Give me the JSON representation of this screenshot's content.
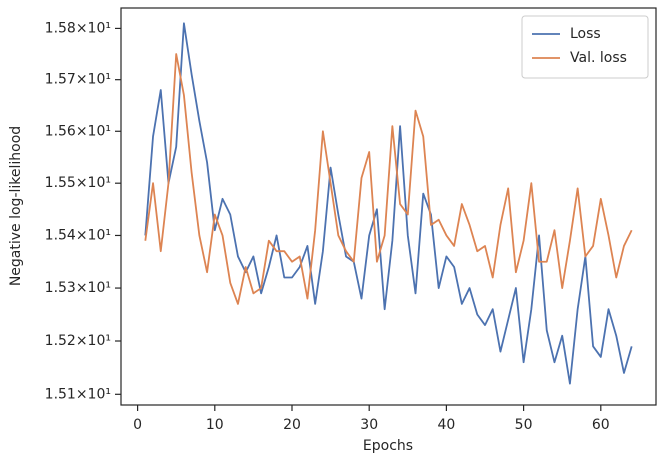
{
  "chart_data": {
    "type": "line",
    "xlabel": "Epochs",
    "ylabel": "Negative log-likelihood",
    "x": [
      1,
      2,
      3,
      4,
      5,
      6,
      7,
      8,
      9,
      10,
      11,
      12,
      13,
      14,
      15,
      16,
      17,
      18,
      19,
      20,
      21,
      22,
      23,
      24,
      25,
      26,
      27,
      28,
      29,
      30,
      31,
      32,
      33,
      34,
      35,
      36,
      37,
      38,
      39,
      40,
      41,
      42,
      43,
      44,
      45,
      46,
      47,
      48,
      49,
      50,
      51,
      52,
      53,
      54,
      55,
      56,
      57,
      58,
      59,
      60,
      61,
      62,
      63,
      64
    ],
    "series": [
      {
        "name": "Loss",
        "color": "#4c72b0",
        "values": [
          15.4,
          15.59,
          15.68,
          15.5,
          15.57,
          15.81,
          15.71,
          15.62,
          15.54,
          15.41,
          15.47,
          15.44,
          15.36,
          15.33,
          15.36,
          15.29,
          15.34,
          15.4,
          15.32,
          15.32,
          15.34,
          15.38,
          15.27,
          15.37,
          15.53,
          15.44,
          15.36,
          15.35,
          15.28,
          15.4,
          15.45,
          15.26,
          15.39,
          15.61,
          15.4,
          15.29,
          15.48,
          15.44,
          15.3,
          15.36,
          15.34,
          15.27,
          15.3,
          15.25,
          15.23,
          15.26,
          15.18,
          15.24,
          15.3,
          15.16,
          15.26,
          15.4,
          15.22,
          15.16,
          15.21,
          15.12,
          15.26,
          15.36,
          15.19,
          15.17,
          15.26,
          15.21,
          15.14,
          15.19
        ]
      },
      {
        "name": "Val. loss",
        "color": "#dd8452",
        "values": [
          15.39,
          15.5,
          15.37,
          15.5,
          15.75,
          15.67,
          15.52,
          15.4,
          15.33,
          15.44,
          15.4,
          15.31,
          15.27,
          15.34,
          15.29,
          15.3,
          15.39,
          15.37,
          15.37,
          15.35,
          15.36,
          15.28,
          15.41,
          15.6,
          15.5,
          15.4,
          15.37,
          15.35,
          15.51,
          15.56,
          15.35,
          15.4,
          15.61,
          15.46,
          15.44,
          15.64,
          15.59,
          15.42,
          15.43,
          15.4,
          15.38,
          15.46,
          15.42,
          15.37,
          15.38,
          15.32,
          15.42,
          15.49,
          15.33,
          15.39,
          15.5,
          15.35,
          15.35,
          15.41,
          15.3,
          15.39,
          15.49,
          15.36,
          15.38,
          15.47,
          15.4,
          15.32,
          15.38,
          15.41
        ]
      }
    ],
    "xlim": [
      -2.15,
      67.15
    ],
    "xticks": [
      0,
      10,
      20,
      30,
      40,
      50,
      60
    ],
    "ylim": [
      15.08,
      15.84
    ],
    "ylog": true,
    "yticks": [
      {
        "value": 15.1,
        "label": "1.51×10¹"
      },
      {
        "value": 15.2,
        "label": "1.52×10¹"
      },
      {
        "value": 15.3,
        "label": "1.53×10¹"
      },
      {
        "value": 15.4,
        "label": "1.54×10¹"
      },
      {
        "value": 15.5,
        "label": "1.55×10¹"
      },
      {
        "value": 15.6,
        "label": "1.56×10¹"
      },
      {
        "value": 15.7,
        "label": "1.57×10¹"
      },
      {
        "value": 15.8,
        "label": "1.58×10¹"
      }
    ],
    "grid": false,
    "legend": "upper right"
  }
}
